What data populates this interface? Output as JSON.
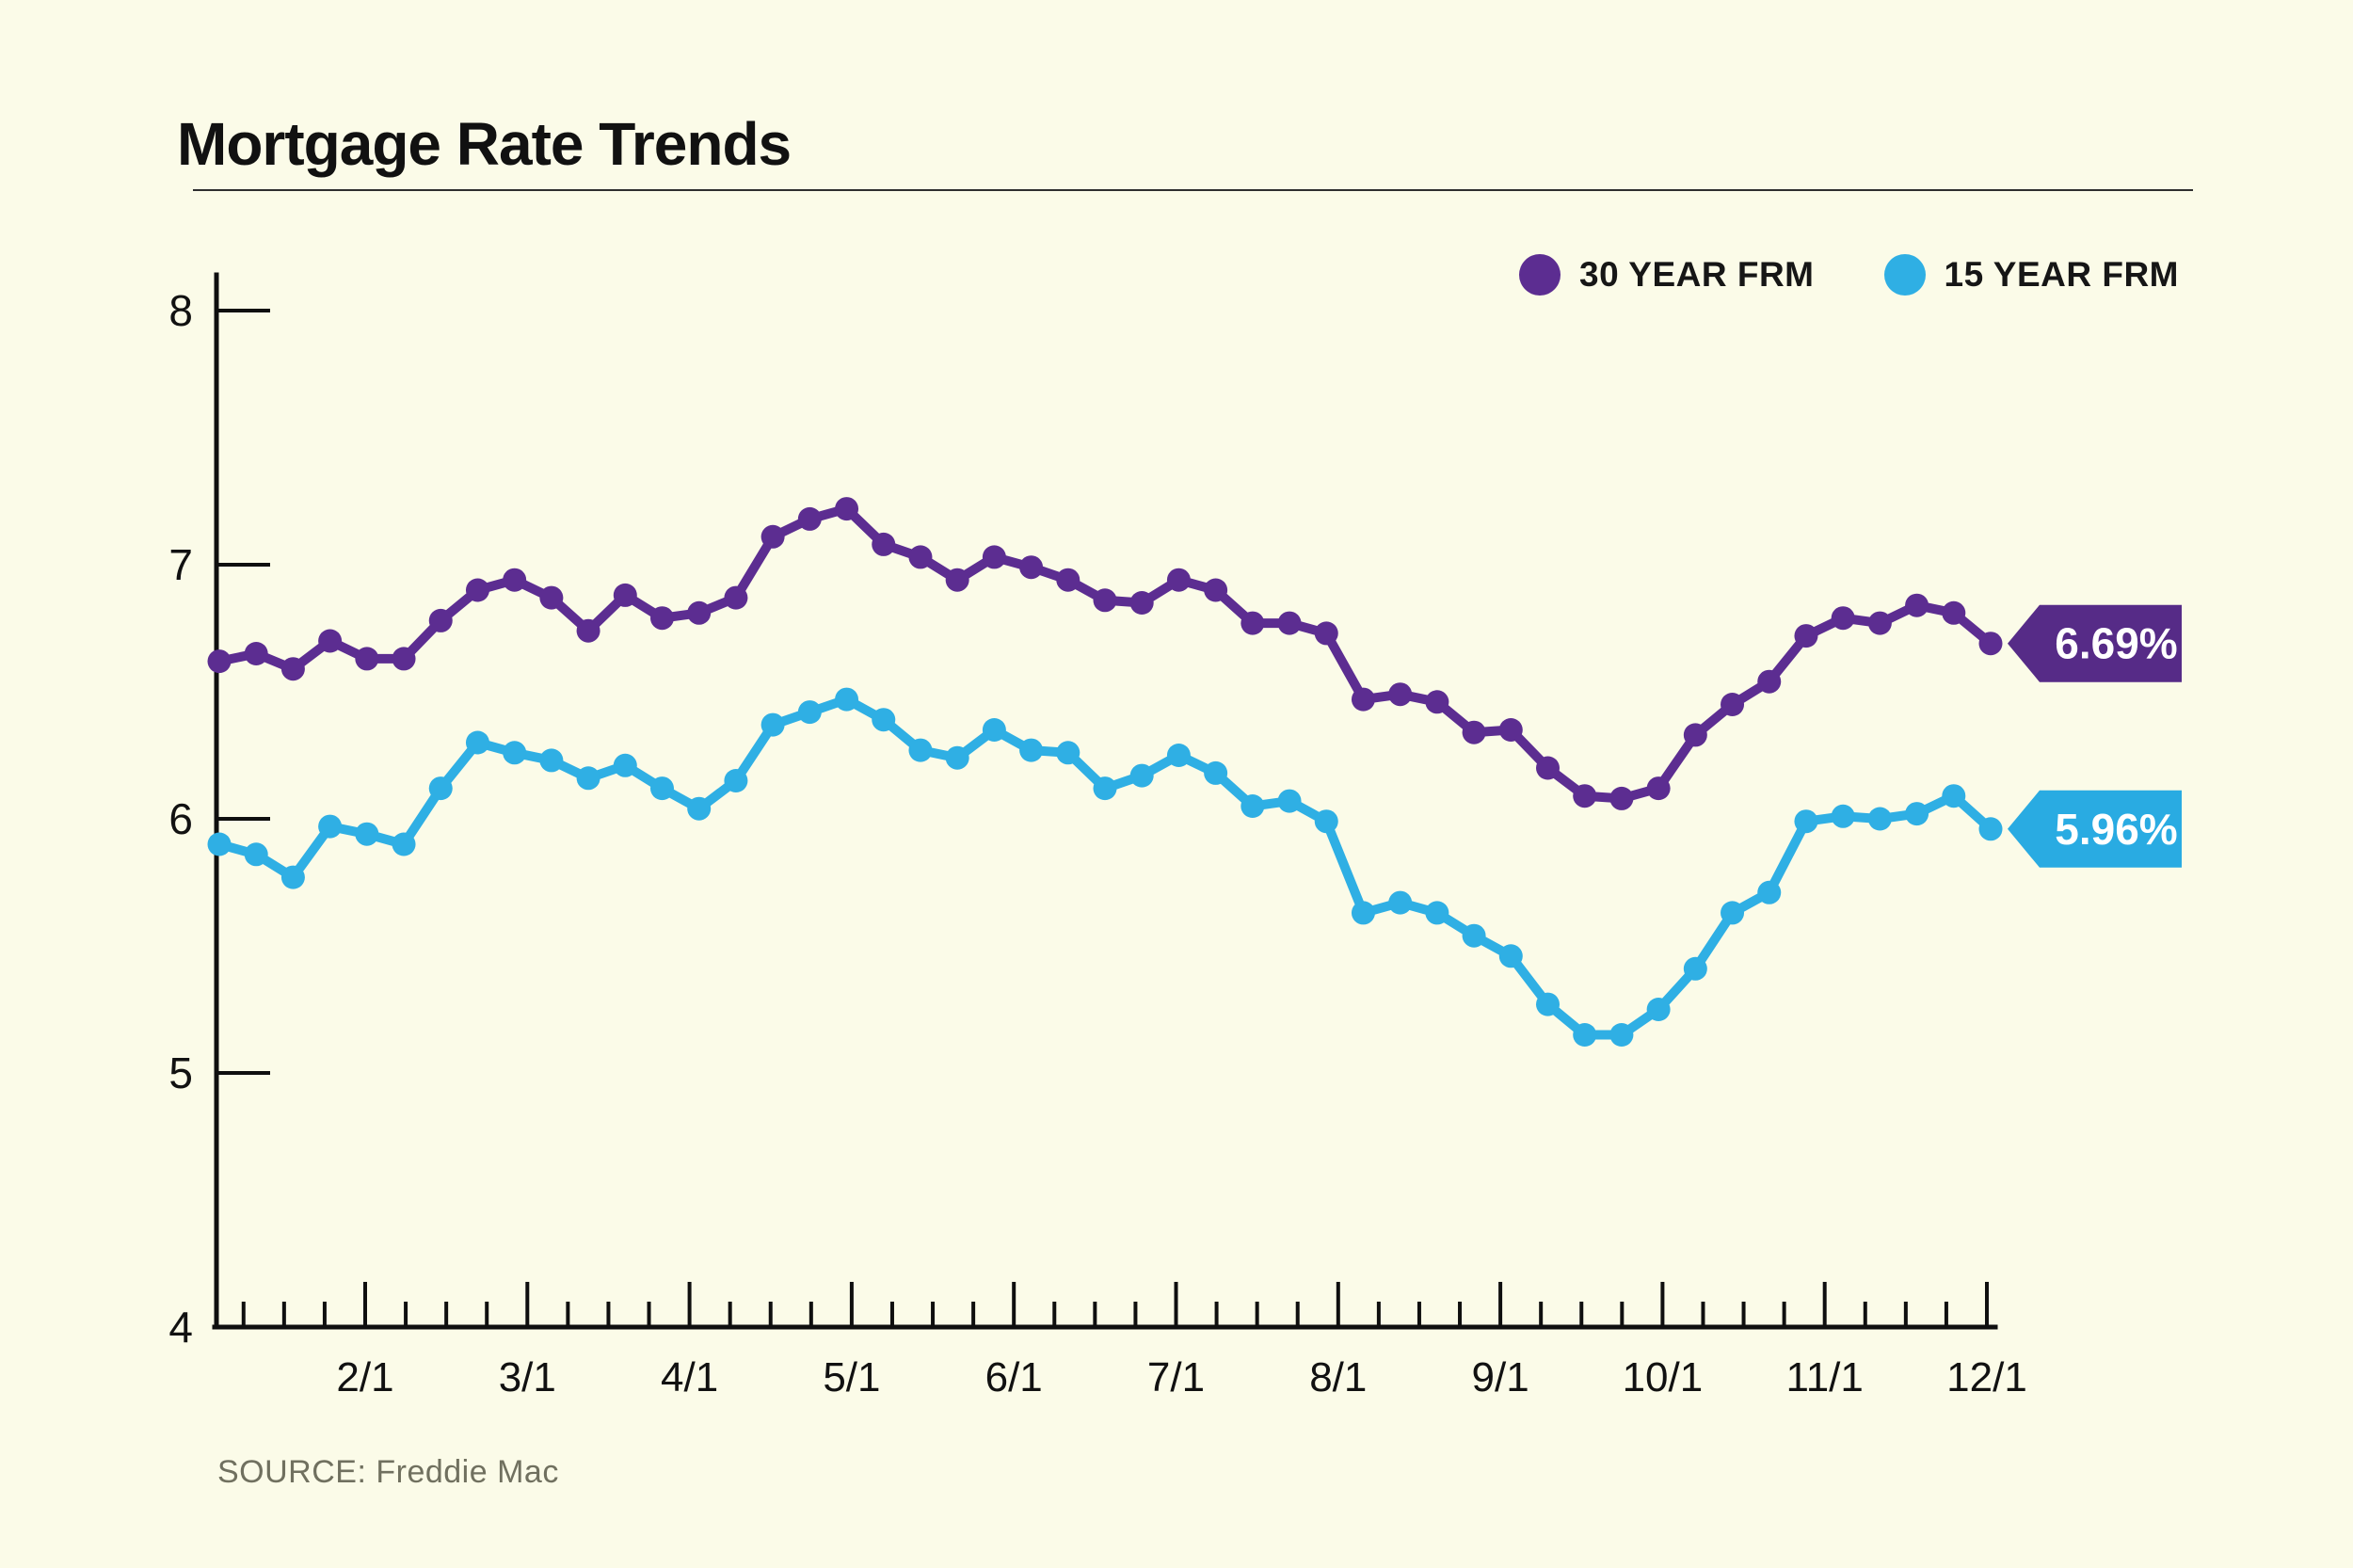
{
  "title": "Mortgage Rate Trends",
  "source": "SOURCE: Freddie Mac",
  "legend": [
    {
      "label": "30 YEAR FRM",
      "color": "#5C2D91"
    },
    {
      "label": "15 YEAR FRM",
      "color": "#2FAFE4"
    }
  ],
  "colors": {
    "background": "#FBFBE8",
    "axis": "#0f0f0f",
    "text": "#111111",
    "source_text": "#70705F",
    "purple": "#5C2D91",
    "purple_tag": "#562B87",
    "blue": "#2FAFE4",
    "blue_tag": "#29ABE2"
  },
  "chart_data": {
    "type": "line",
    "title": "Mortgage Rate Trends",
    "source": "SOURCE: Freddie Mac",
    "x_unit": "weekly (Jan through early Dec)",
    "x_tick_labels": [
      "2/1",
      "3/1",
      "4/1",
      "5/1",
      "6/1",
      "7/1",
      "8/1",
      "9/1",
      "10/1",
      "11/1",
      "12/1"
    ],
    "y_ticks": [
      8,
      7,
      6,
      5,
      4
    ],
    "ylim": [
      4,
      8
    ],
    "grid": false,
    "legend_position": "top-right",
    "series": [
      {
        "name": "30 YEAR FRM",
        "color": "#5C2D91",
        "tag_color": "#562B87",
        "end_label": "6.69%",
        "values": [
          6.62,
          6.65,
          6.59,
          6.7,
          6.63,
          6.63,
          6.78,
          6.9,
          6.94,
          6.87,
          6.74,
          6.88,
          6.79,
          6.81,
          6.87,
          7.11,
          7.18,
          7.22,
          7.08,
          7.03,
          6.94,
          7.03,
          6.99,
          6.94,
          6.86,
          6.85,
          6.94,
          6.9,
          6.77,
          6.77,
          6.73,
          6.47,
          6.49,
          6.46,
          6.34,
          6.35,
          6.2,
          6.09,
          6.08,
          6.12,
          6.33,
          6.45,
          6.54,
          6.72,
          6.79,
          6.77,
          6.84,
          6.81,
          6.69
        ]
      },
      {
        "name": "15 YEAR FRM",
        "color": "#2FAFE4",
        "tag_color": "#29ABE2",
        "end_label": "5.96%",
        "values": [
          5.9,
          5.86,
          5.77,
          5.97,
          5.94,
          5.9,
          6.12,
          6.3,
          6.26,
          6.23,
          6.16,
          6.21,
          6.12,
          6.04,
          6.15,
          6.37,
          6.42,
          6.47,
          6.39,
          6.27,
          6.24,
          6.35,
          6.27,
          6.26,
          6.12,
          6.17,
          6.25,
          6.18,
          6.05,
          6.07,
          5.99,
          5.63,
          5.67,
          5.63,
          5.54,
          5.46,
          5.27,
          5.15,
          5.15,
          5.25,
          5.41,
          5.63,
          5.71,
          5.99,
          6.01,
          6.0,
          6.02,
          6.09,
          5.96
        ]
      }
    ]
  }
}
